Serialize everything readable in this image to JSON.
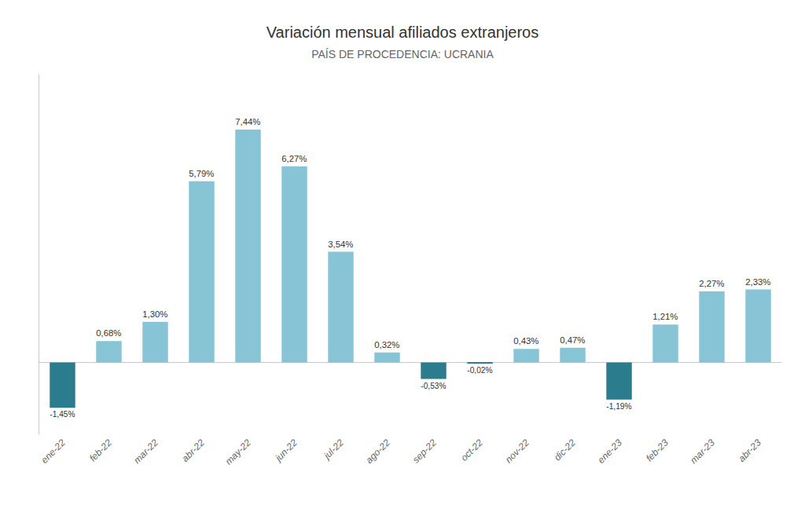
{
  "chart_data": {
    "type": "bar",
    "title": "Variación mensual afiliados extranjeros",
    "subtitle": "PAÍS DE PROCEDENCIA: UCRANIA",
    "categories": [
      "ene-22",
      "feb-22",
      "mar-22",
      "abr-22",
      "may-22",
      "jun-22",
      "jul-22",
      "ago-22",
      "sep-22",
      "oct-22",
      "nov-22",
      "dic-22",
      "ene-23",
      "feb-23",
      "mar-23",
      "abr-23"
    ],
    "values": [
      -1.45,
      0.68,
      1.3,
      5.79,
      7.44,
      6.27,
      3.54,
      0.32,
      -0.53,
      -0.02,
      0.43,
      0.47,
      -1.19,
      1.21,
      2.27,
      2.33
    ],
    "value_labels": [
      "-1,45%",
      "0,68%",
      "1,30%",
      "5,79%",
      "7,44%",
      "6,27%",
      "3,54%",
      "0,32%",
      "-0,53%",
      "-0,02%",
      "0,43%",
      "0,47%",
      "-1,19%",
      "1,21%",
      "2,27%",
      "2,33%"
    ],
    "colors": [
      "#2b7d8e",
      "#87c5d6",
      "#87c5d6",
      "#87c5d6",
      "#87c5d6",
      "#87c5d6",
      "#87c5d6",
      "#87c5d6",
      "#2b7d8e",
      "#2b7d8e",
      "#87c5d6",
      "#87c5d6",
      "#2b7d8e",
      "#87c5d6",
      "#87c5d6",
      "#87c5d6"
    ],
    "ylim": [
      -2.3,
      9.2
    ],
    "grid": false,
    "data_labels": true,
    "tick_labels": "x"
  }
}
